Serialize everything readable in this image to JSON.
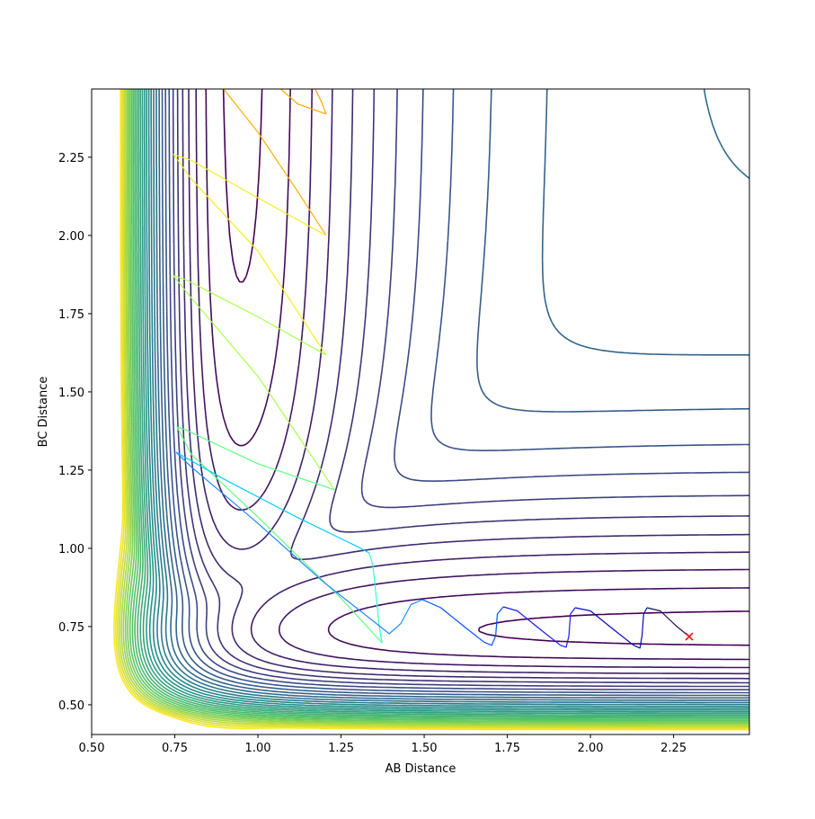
{
  "chart_data": {
    "type": "contour",
    "xlabel": "AB Distance",
    "ylabel": "BC Distance",
    "xlim": [
      0.5,
      2.478
    ],
    "ylim": [
      0.405,
      2.468
    ],
    "xticks": [
      "0.50",
      "0.75",
      "1.00",
      "1.25",
      "1.50",
      "1.75",
      "2.00",
      "2.25"
    ],
    "yticks": [
      "0.50",
      "0.75",
      "1.00",
      "1.25",
      "1.50",
      "1.75",
      "2.00",
      "2.25"
    ],
    "grid": false,
    "colormap": "viridis",
    "contour_level_count": 32,
    "end_marker": {
      "x": 2.297,
      "y": 0.718,
      "symbol": "x",
      "color": "#ff0000"
    },
    "trajectory": [
      {
        "color": "#ffa500",
        "points": [
          [
            1.035,
            2.5
          ],
          [
            1.12,
            2.42
          ],
          [
            1.205,
            2.388
          ],
          [
            1.19,
            2.43
          ],
          [
            1.157,
            2.5
          ]
        ]
      },
      {
        "color": "#ffb000",
        "points": [
          [
            0.873,
            2.5
          ],
          [
            1.0,
            2.33
          ],
          [
            1.12,
            2.14
          ],
          [
            1.205,
            2.0
          ]
        ]
      },
      {
        "color": "#f0f020",
        "points": [
          [
            1.205,
            2.0
          ],
          [
            1.0,
            2.12
          ],
          [
            0.8,
            2.24
          ],
          [
            0.746,
            2.259
          ],
          [
            0.8,
            2.18
          ],
          [
            1.0,
            1.95
          ],
          [
            1.205,
            1.618
          ]
        ]
      },
      {
        "color": "#a8ff50",
        "points": [
          [
            1.205,
            1.618
          ],
          [
            1.0,
            1.74
          ],
          [
            0.78,
            1.86
          ],
          [
            0.746,
            1.871
          ],
          [
            0.8,
            1.8
          ],
          [
            1.0,
            1.55
          ],
          [
            1.23,
            1.187
          ]
        ]
      },
      {
        "color": "#60ff80",
        "points": [
          [
            1.23,
            1.187
          ],
          [
            1.0,
            1.27
          ],
          [
            0.78,
            1.38
          ],
          [
            0.757,
            1.388
          ],
          [
            0.8,
            1.3
          ],
          [
            1.0,
            1.1
          ],
          [
            1.25,
            0.84
          ],
          [
            1.373,
            0.698
          ]
        ]
      },
      {
        "color": "#30ffd0",
        "points": [
          [
            1.373,
            0.698
          ],
          [
            1.365,
            0.75
          ],
          [
            1.346,
            0.943
          ],
          [
            1.335,
            0.985
          ]
        ]
      },
      {
        "color": "#00ccff",
        "points": [
          [
            1.335,
            0.985
          ],
          [
            1.3,
            1.005
          ],
          [
            1.116,
            1.1
          ],
          [
            0.9,
            1.22
          ],
          [
            0.754,
            1.307
          ]
        ]
      },
      {
        "color": "#1e88ff",
        "points": [
          [
            0.754,
            1.307
          ],
          [
            0.8,
            1.26
          ],
          [
            1.0,
            1.08
          ],
          [
            1.2,
            0.89
          ],
          [
            1.395,
            0.727
          ],
          [
            1.43,
            0.76
          ],
          [
            1.46,
            0.82
          ],
          [
            1.495,
            0.836
          ]
        ]
      },
      {
        "color": "#0050ff",
        "points": [
          [
            1.495,
            0.836
          ],
          [
            1.55,
            0.81
          ],
          [
            1.62,
            0.75
          ],
          [
            1.68,
            0.7
          ],
          [
            1.703,
            0.69
          ],
          [
            1.715,
            0.72
          ],
          [
            1.72,
            0.79
          ],
          [
            1.738,
            0.813
          ]
        ]
      },
      {
        "color": "#1a1aee",
        "points": [
          [
            1.738,
            0.813
          ],
          [
            1.78,
            0.8
          ],
          [
            1.85,
            0.74
          ],
          [
            1.91,
            0.69
          ],
          [
            1.927,
            0.684
          ],
          [
            1.935,
            0.72
          ],
          [
            1.94,
            0.79
          ],
          [
            1.954,
            0.81
          ]
        ]
      },
      {
        "color": "#0a0ab8",
        "points": [
          [
            1.954,
            0.81
          ],
          [
            2.0,
            0.8
          ],
          [
            2.07,
            0.74
          ],
          [
            2.13,
            0.69
          ],
          [
            2.149,
            0.681
          ],
          [
            2.155,
            0.72
          ],
          [
            2.16,
            0.79
          ],
          [
            2.17,
            0.81
          ]
        ]
      },
      {
        "color": "#141460",
        "points": [
          [
            2.17,
            0.81
          ],
          [
            2.21,
            0.8
          ],
          [
            2.26,
            0.75
          ],
          [
            2.297,
            0.718
          ]
        ]
      }
    ]
  }
}
